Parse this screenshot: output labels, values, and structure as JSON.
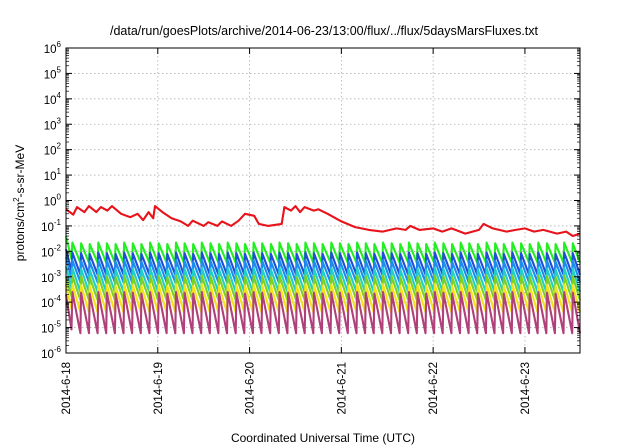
{
  "chart_data": {
    "type": "line",
    "title": "/data/run/goesPlots/archive/2014-06-23/13:00/flux/../flux/5daysMarsFluxes.txt",
    "xlabel": "Coordinated Universal Time (UTC)",
    "ylabel_parts": [
      "protons/cm",
      "2",
      "-s-sr-MeV"
    ],
    "x_ticks": [
      "2014-6-18",
      "2014-6-19",
      "2014-6-20",
      "2014-6-21",
      "2014-6-22",
      "2014-6-23"
    ],
    "x_range_days": [
      0,
      5.6
    ],
    "y_scale": "log",
    "ylim": [
      1e-06,
      1000000.0
    ],
    "y_ticks": [
      {
        "base": "10",
        "exp": "-6"
      },
      {
        "base": "10",
        "exp": "-5"
      },
      {
        "base": "10",
        "exp": "-4"
      },
      {
        "base": "10",
        "exp": "-3"
      },
      {
        "base": "10",
        "exp": "-2"
      },
      {
        "base": "10",
        "exp": "-1"
      },
      {
        "base": "10",
        "exp": "0"
      },
      {
        "base": "10",
        "exp": "1"
      },
      {
        "base": "10",
        "exp": "2"
      },
      {
        "base": "10",
        "exp": "3"
      },
      {
        "base": "10",
        "exp": "4"
      },
      {
        "base": "10",
        "exp": "5"
      },
      {
        "base": "10",
        "exp": "6"
      }
    ],
    "grid": true,
    "legend": "none",
    "series": [
      {
        "color": "#e8121b",
        "values": [
          [
            0.0,
            0.45
          ],
          [
            0.08,
            0.28
          ],
          [
            0.12,
            0.55
          ],
          [
            0.2,
            0.35
          ],
          [
            0.25,
            0.6
          ],
          [
            0.33,
            0.35
          ],
          [
            0.38,
            0.55
          ],
          [
            0.45,
            0.4
          ],
          [
            0.5,
            0.6
          ],
          [
            0.6,
            0.3
          ],
          [
            0.7,
            0.22
          ],
          [
            0.78,
            0.3
          ],
          [
            0.84,
            0.17
          ],
          [
            0.9,
            0.35
          ],
          [
            0.95,
            0.2
          ],
          [
            0.97,
            0.6
          ],
          [
            1.05,
            0.35
          ],
          [
            1.15,
            0.2
          ],
          [
            1.25,
            0.15
          ],
          [
            1.33,
            0.1
          ],
          [
            1.38,
            0.16
          ],
          [
            1.5,
            0.1
          ],
          [
            1.55,
            0.14
          ],
          [
            1.65,
            0.1
          ],
          [
            1.7,
            0.15
          ],
          [
            1.8,
            0.1
          ],
          [
            1.88,
            0.16
          ],
          [
            1.95,
            0.3
          ],
          [
            2.05,
            0.25
          ],
          [
            2.1,
            0.12
          ],
          [
            2.2,
            0.1
          ],
          [
            2.35,
            0.12
          ],
          [
            2.38,
            0.55
          ],
          [
            2.45,
            0.4
          ],
          [
            2.5,
            0.6
          ],
          [
            2.55,
            0.35
          ],
          [
            2.6,
            0.55
          ],
          [
            2.7,
            0.4
          ],
          [
            2.75,
            0.45
          ],
          [
            2.85,
            0.3
          ],
          [
            3.0,
            0.15
          ],
          [
            3.15,
            0.09
          ],
          [
            3.3,
            0.07
          ],
          [
            3.45,
            0.06
          ],
          [
            3.6,
            0.08
          ],
          [
            3.7,
            0.07
          ],
          [
            3.75,
            0.1
          ],
          [
            3.85,
            0.07
          ],
          [
            4.0,
            0.08
          ],
          [
            4.1,
            0.06
          ],
          [
            4.2,
            0.08
          ],
          [
            4.35,
            0.05
          ],
          [
            4.5,
            0.07
          ],
          [
            4.55,
            0.12
          ],
          [
            4.65,
            0.08
          ],
          [
            4.8,
            0.06
          ],
          [
            4.9,
            0.07
          ],
          [
            5.0,
            0.08
          ],
          [
            5.1,
            0.06
          ],
          [
            5.2,
            0.07
          ],
          [
            5.35,
            0.05
          ],
          [
            5.45,
            0.06
          ],
          [
            5.52,
            0.04
          ],
          [
            5.6,
            0.05
          ]
        ]
      },
      {
        "color": "#22ee22",
        "start": 0.04,
        "peak": 0.022,
        "trough": 0.0035,
        "period": 0.094
      },
      {
        "color": "#1f4fd6",
        "start": 0.012,
        "peak": 0.009,
        "trough": 0.0012,
        "period": 0.094
      },
      {
        "color": "#1a8ef0",
        "start": 0.006,
        "peak": 0.0045,
        "trough": 0.0006,
        "period": 0.094
      },
      {
        "color": "#20cfc6",
        "start": 0.0025,
        "peak": 0.0022,
        "trough": 0.00025,
        "period": 0.094
      },
      {
        "color": "#7bd021",
        "start": 0.001,
        "peak": 0.0011,
        "trough": 0.00012,
        "period": 0.094
      },
      {
        "color": "#f2e31a",
        "start": 0.0005,
        "peak": 0.0005,
        "trough": 4e-05,
        "period": 0.094
      },
      {
        "color": "#b0407a",
        "start": 0.0002,
        "peak": 0.00025,
        "trough": 6e-06,
        "period": 0.094
      }
    ]
  }
}
